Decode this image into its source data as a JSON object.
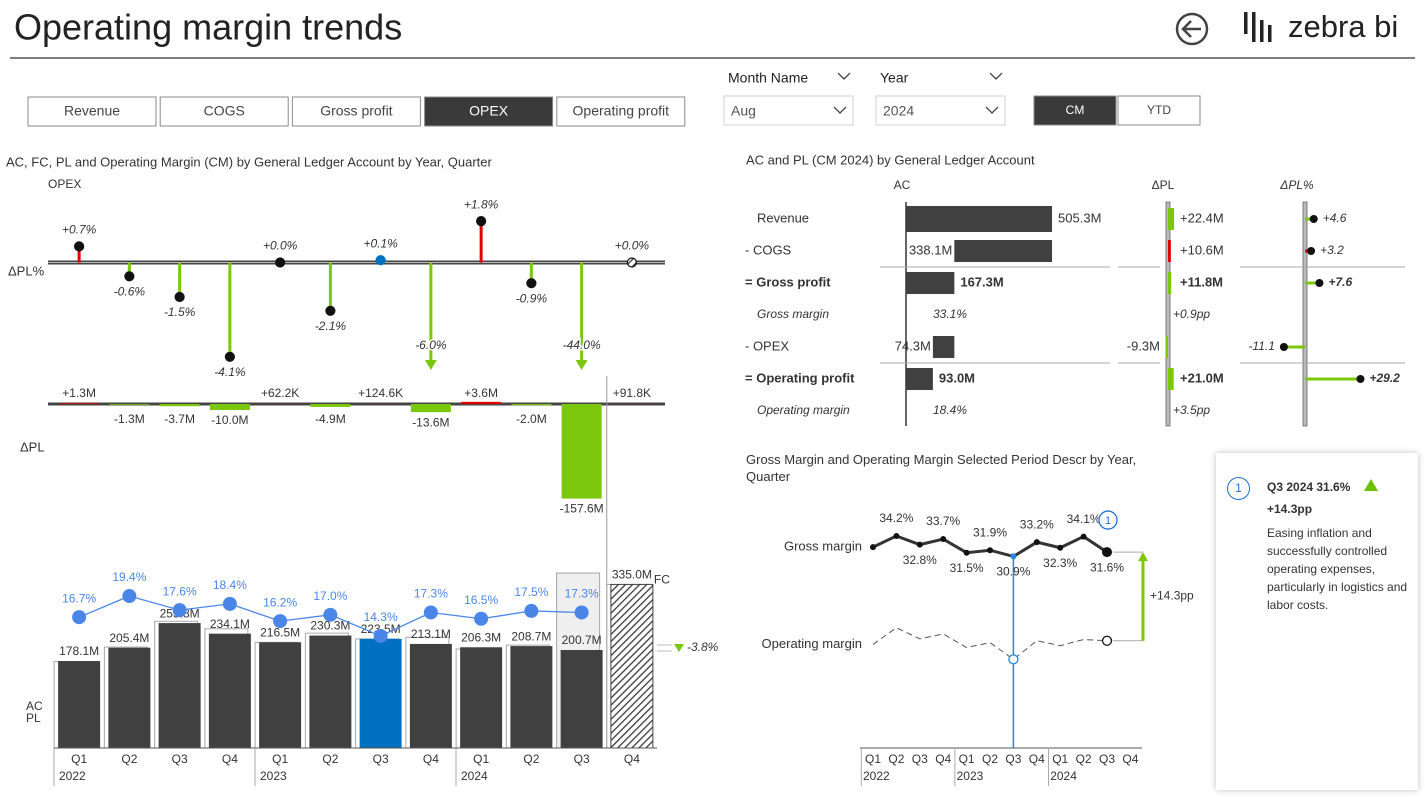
{
  "header": {
    "title": "Operating margin trends",
    "logo": "zebra bi"
  },
  "tabs": {
    "items": [
      "Revenue",
      "COGS",
      "Gross profit",
      "OPEX",
      "Operating profit"
    ],
    "active": 3
  },
  "slicers": [
    {
      "label": "Month Name",
      "value": "Aug"
    },
    {
      "label": "Year",
      "value": "2024"
    }
  ],
  "toggle": {
    "items": [
      "CM",
      "YTD"
    ],
    "active": 0
  },
  "chart_data": [
    {
      "type": "bar",
      "title": "AC, FC, PL and Operating Margin (CM) by General Ledger Account by Year, Quarter",
      "subtitle": "OPEX",
      "categories": [
        "Q1",
        "Q2",
        "Q3",
        "Q4",
        "Q1",
        "Q2",
        "Q3",
        "Q4",
        "Q1",
        "Q2",
        "Q3",
        "Q4"
      ],
      "years": [
        "2022",
        "2023",
        "2024"
      ],
      "selected": 6,
      "highlight_color": "#0070c0",
      "positive_color": "#e00000",
      "negative_color": "#7ac70c",
      "series": [
        {
          "name": "AC",
          "style": "solid",
          "color": "#404040",
          "values": [
            178.1,
            205.4,
            255.8,
            234.1,
            216.5,
            230.3,
            223.5,
            213.1,
            206.3,
            208.7,
            200.7,
            null
          ],
          "value_labels": [
            "178.1M",
            "205.4M",
            "255.8M",
            "234.1M",
            "216.5M",
            "230.3M",
            "223.5M",
            "213.1M",
            "206.3M",
            "208.7M",
            "200.7M",
            null
          ]
        },
        {
          "name": "FC",
          "style": "hatch",
          "color": "#404040",
          "values": [
            null,
            null,
            null,
            null,
            null,
            null,
            null,
            null,
            null,
            null,
            null,
            335.0
          ],
          "value_labels": [
            null,
            null,
            null,
            null,
            null,
            null,
            null,
            null,
            null,
            null,
            null,
            "335.0M"
          ]
        },
        {
          "name": "PL",
          "style": "outline",
          "color": "#a6a6a6",
          "values": [
            176.8,
            206.7,
            259.5,
            244.1,
            216.4,
            235.2,
            223.4,
            226.7,
            202.7,
            210.7,
            358.3,
            334.9
          ]
        },
        {
          "style": "line",
          "axis": "y2",
          "color": "#4a86e8",
          "values": [
            16.7,
            19.4,
            17.6,
            18.4,
            16.2,
            17.0,
            14.3,
            17.3,
            16.5,
            17.5,
            17.3,
            null
          ],
          "value_labels": [
            "16.7%",
            "19.4%",
            "17.6%",
            "18.4%",
            "16.2%",
            "17.0%",
            "14.3%",
            "17.3%",
            "16.5%",
            "17.5%",
            "17.3%",
            null
          ]
        }
      ],
      "ylim": [
        0,
        385
      ],
      "y2lim": [
        0,
        24
      ],
      "delta_pl": {
        "name": "ΔPL",
        "ylim": [
          -165,
          5
        ],
        "values": [
          1.3,
          -1.3,
          -3.7,
          -10.0,
          0.0622,
          -4.9,
          0.1246,
          -13.6,
          3.6,
          -2.0,
          -157.6,
          0.0918
        ],
        "value_labels": [
          "+1.3M",
          "-1.3M",
          "-3.7M",
          "-10.0M",
          "+62.2K",
          "-4.9M",
          "+124.6K",
          "-13.6M",
          "+3.6M",
          "-2.0M",
          "-157.6M",
          "+91.8K"
        ]
      },
      "delta_pl_pct": {
        "name": "ΔPL%",
        "ylim": [
          -4.5,
          2.5
        ],
        "values": [
          0.7,
          -0.6,
          -1.5,
          -4.1,
          0.0,
          -2.1,
          0.1,
          -6.0,
          1.8,
          -0.9,
          -44.0,
          0.0
        ],
        "value_labels": [
          "+0.7%",
          "-0.6%",
          "-1.5%",
          "-4.1%",
          "+0.0%",
          "-2.1%",
          "+0.1%",
          "-6.0%",
          "+1.8%",
          "-0.9%",
          "-44.0%",
          "+0.0%"
        ]
      },
      "fc_delta": {
        "value": -3.8,
        "value_label": "-3.8%"
      }
    },
    {
      "type": "waterfall",
      "title": "AC and PL (CM 2024) by General Ledger Account",
      "columns": [
        "AC",
        "ΔPL",
        "ΔPL%"
      ],
      "color": "#404040",
      "categories": [
        "Revenue",
        "- COGS",
        "= Gross profit",
        "Gross margin",
        "- OPEX",
        "= Operating profit",
        "Operating margin"
      ],
      "row_kind": [
        "start",
        "subtract",
        "result",
        "ratio",
        "subtract",
        "result",
        "ratio"
      ],
      "values": [
        505.3,
        338.1,
        167.3,
        33.1,
        74.3,
        93.0,
        18.4
      ],
      "value_labels": [
        "505.3M",
        "338.1M",
        "167.3M",
        "33.1%",
        "74.3M",
        "93.0M",
        "18.4%"
      ],
      "delta": {
        "values": [
          22.4,
          10.6,
          11.8,
          0.9,
          -9.3,
          21.0,
          3.5
        ],
        "value_labels": [
          "+22.4M",
          "+10.6M",
          "+11.8M",
          "+0.9pp",
          "-9.3M",
          "+21.0M",
          "+3.5pp"
        ],
        "colors": [
          "#7ac70c",
          "#e00000",
          "#7ac70c",
          null,
          "#7ac70c",
          "#7ac70c",
          null
        ]
      },
      "delta_pct": {
        "values": [
          4.6,
          3.2,
          7.6,
          null,
          -11.1,
          29.2,
          null
        ],
        "value_labels": [
          "+4.6",
          "+3.2",
          "+7.6",
          null,
          "-11.1",
          "+29.2",
          null
        ],
        "colors": [
          "#7ac70c",
          "#e00000",
          "#7ac70c",
          null,
          "#7ac70c",
          "#7ac70c",
          null
        ]
      }
    },
    {
      "type": "line",
      "title": "Gross Margin and Operating Margin Selected Period Descr by Year, Quarter",
      "categories": [
        "Q1",
        "Q2",
        "Q3",
        "Q4",
        "Q1",
        "Q2",
        "Q3",
        "Q4",
        "Q1",
        "Q2",
        "Q3",
        "Q4"
      ],
      "years": [
        "2022",
        "2023",
        "2024"
      ],
      "selected": 6,
      "highlight_color": "#1e88e5",
      "ylim": [
        0,
        36
      ],
      "series": [
        {
          "name": "Gross margin",
          "color": "#333333",
          "style": "solid",
          "values": [
            32.4,
            34.2,
            32.8,
            33.7,
            31.5,
            31.9,
            30.9,
            33.2,
            32.3,
            34.1,
            31.6,
            null
          ],
          "value_labels": [
            null,
            "34.2%",
            "32.8%",
            "33.7%",
            "31.5%",
            "31.9%",
            "30.9%",
            "33.2%",
            "32.3%",
            "34.1%",
            "31.6%",
            null
          ]
        },
        {
          "name": "Operating margin",
          "color": "#555555",
          "style": "dashed",
          "values": [
            16.7,
            19.4,
            17.6,
            18.4,
            16.2,
            17.0,
            14.3,
            17.3,
            16.5,
            17.5,
            17.3,
            null
          ]
        }
      ],
      "difference": {
        "value": 14.3,
        "value_label": "+14.3pp",
        "color": "#7ac70c"
      }
    }
  ],
  "comment": {
    "number": "1",
    "title": "Q3 2024 31.6%",
    "delta": "+14.3pp",
    "text": "Easing inflation and successfully controlled operating expenses, particularly in logistics and labor costs."
  }
}
